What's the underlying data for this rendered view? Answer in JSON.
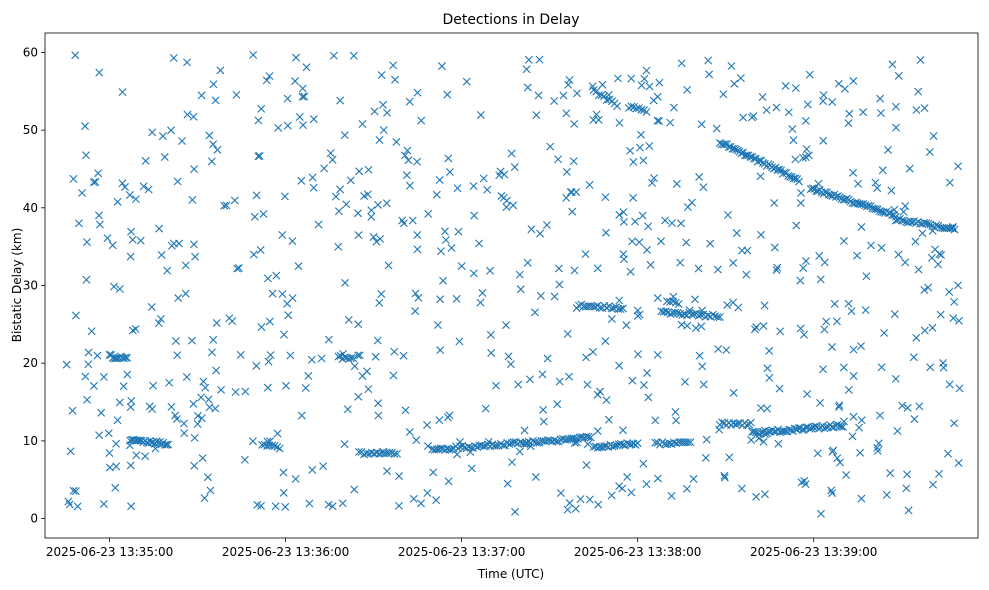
{
  "chart_data": {
    "type": "scatter",
    "title": "Detections in Delay",
    "xlabel": "Time (UTC)",
    "ylabel": "Bistatic Delay (km)",
    "marker": "x",
    "color": "#1f77b4",
    "grid": false,
    "legend": "none",
    "xlim": [
      "2025-06-23 13:34:38",
      "2025-06-23 13:39:56"
    ],
    "ylim": [
      -2.5,
      62.5
    ],
    "xticks": [
      "2025-06-23 13:35:00",
      "2025-06-23 13:36:00",
      "2025-06-23 13:37:00",
      "2025-06-23 13:38:00",
      "2025-06-23 13:39:00"
    ],
    "yticks": [
      0,
      10,
      20,
      30,
      40,
      50,
      60
    ],
    "time_range": {
      "start": "2025-06-23 13:34:45",
      "end": "2025-06-23 13:39:50"
    },
    "tracks": [
      {
        "start": "2025-06-23 13:35:00",
        "end": "2025-06-23 13:35:06",
        "delay_start": 20.9,
        "delay_end": 20.6,
        "points": 12
      },
      {
        "start": "2025-06-23 13:35:07",
        "end": "2025-06-23 13:35:20",
        "delay_start": 10.1,
        "delay_end": 9.6,
        "points": 24
      },
      {
        "start": "2025-06-23 13:35:52",
        "end": "2025-06-23 13:35:58",
        "delay_start": 9.4,
        "delay_end": 9.1,
        "points": 8
      },
      {
        "start": "2025-06-23 13:36:18",
        "end": "2025-06-23 13:36:23",
        "delay_start": 20.8,
        "delay_end": 20.6,
        "points": 8
      },
      {
        "start": "2025-06-23 13:36:25",
        "end": "2025-06-23 13:36:38",
        "delay_start": 8.4,
        "delay_end": 8.3,
        "points": 16
      },
      {
        "start": "2025-06-23 13:36:50",
        "end": "2025-06-23 13:37:44",
        "delay_start": 8.9,
        "delay_end": 10.4,
        "points": 75
      },
      {
        "start": "2025-06-23 13:37:40",
        "end": "2025-06-23 13:37:55",
        "delay_start": 27.5,
        "delay_end": 27.0,
        "points": 20
      },
      {
        "start": "2025-06-23 13:37:45",
        "end": "2025-06-23 13:38:00",
        "delay_start": 9.2,
        "delay_end": 9.7,
        "points": 22
      },
      {
        "start": "2025-06-23 13:37:45",
        "end": "2025-06-23 13:37:53",
        "delay_start": 55.0,
        "delay_end": 53.2,
        "points": 10
      },
      {
        "start": "2025-06-23 13:37:57",
        "end": "2025-06-23 13:38:03",
        "delay_start": 53.0,
        "delay_end": 52.4,
        "points": 8
      },
      {
        "start": "2025-06-23 13:38:06",
        "end": "2025-06-23 13:38:18",
        "delay_start": 9.6,
        "delay_end": 10.0,
        "points": 16
      },
      {
        "start": "2025-06-23 13:38:08",
        "end": "2025-06-23 13:38:28",
        "delay_start": 26.6,
        "delay_end": 26.0,
        "points": 26
      },
      {
        "start": "2025-06-23 13:38:10",
        "end": "2025-06-23 13:38:14",
        "delay_start": 28.0,
        "delay_end": 27.8,
        "points": 5
      },
      {
        "start": "2025-06-23 13:38:28",
        "end": "2025-06-23 13:38:55",
        "delay_start": 48.5,
        "delay_end": 43.5,
        "points": 45
      },
      {
        "start": "2025-06-23 13:38:28",
        "end": "2025-06-23 13:38:38",
        "delay_start": 12.2,
        "delay_end": 12.1,
        "points": 14
      },
      {
        "start": "2025-06-23 13:38:39",
        "end": "2025-06-23 13:39:10",
        "delay_start": 11.0,
        "delay_end": 12.0,
        "points": 50
      },
      {
        "start": "2025-06-23 13:38:59",
        "end": "2025-06-23 13:39:28",
        "delay_start": 42.5,
        "delay_end": 39.0,
        "points": 48
      },
      {
        "start": "2025-06-23 13:39:28",
        "end": "2025-06-23 13:39:48",
        "delay_start": 38.5,
        "delay_end": 37.2,
        "points": 30
      }
    ],
    "scattered_points_count": 760
  }
}
